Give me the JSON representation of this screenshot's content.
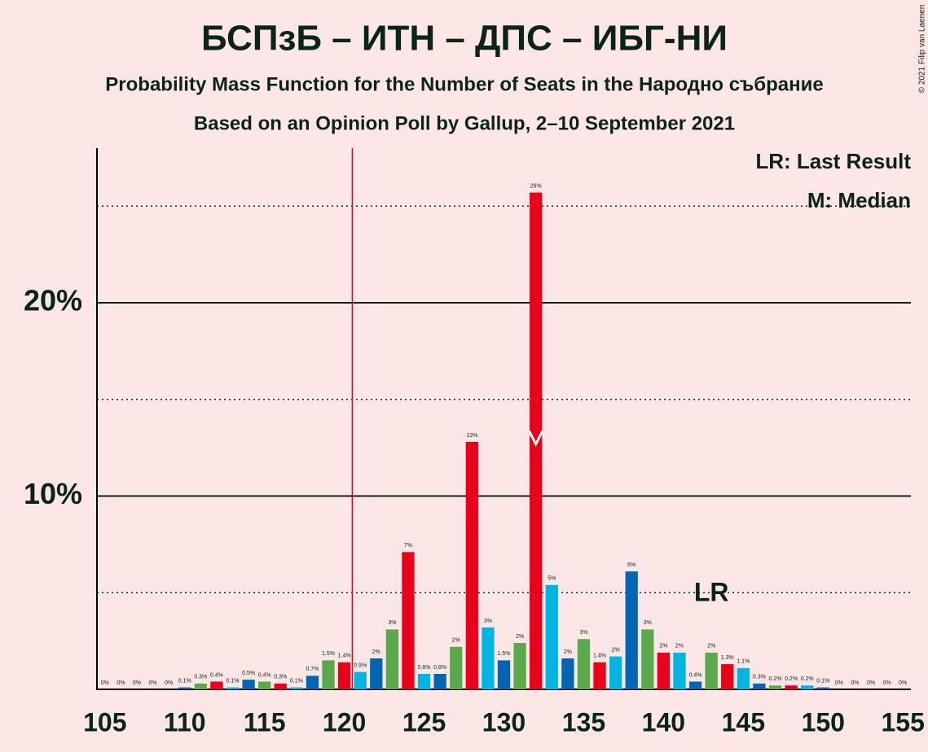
{
  "chart_data": {
    "type": "bar",
    "title": "БСПзБ – ИТН – ДПС – ИБГ-НИ",
    "subtitle": "Probability Mass Function for the Number of Seats in the Народно събрание",
    "subtitle2": "Based on an Opinion Poll by Gallup, 2–10 September 2021",
    "copyright": "© 2021 Filip van Laenen",
    "legend": [
      "LR: Last Result",
      "M: Median"
    ],
    "last_result_label": "LR",
    "last_result": 143,
    "median": 132,
    "threshold": 120.5,
    "colors": [
      "#00b5e2",
      "#0066b3",
      "#5aa94a",
      "#e8001c"
    ],
    "threshold_color": "#e8001c",
    "x": [
      105,
      106,
      107,
      108,
      109,
      110,
      111,
      112,
      113,
      114,
      115,
      116,
      117,
      118,
      119,
      120,
      121,
      122,
      123,
      124,
      125,
      126,
      127,
      128,
      129,
      130,
      131,
      132,
      133,
      134,
      135,
      136,
      137,
      138,
      139,
      140,
      141,
      142,
      143,
      144,
      145,
      146,
      147,
      148,
      149,
      150,
      151,
      152,
      153,
      154,
      155
    ],
    "values": [
      0,
      0,
      0,
      0,
      0,
      0.1,
      0.3,
      0.4,
      0.1,
      0.5,
      0.4,
      0.3,
      0.1,
      0.7,
      1.5,
      1.4,
      0.9,
      1.6,
      3.1,
      7.1,
      0.8,
      0.8,
      2.2,
      12.8,
      3.2,
      1.5,
      2.4,
      25.7,
      5.4,
      1.6,
      2.6,
      1.4,
      1.7,
      6.1,
      3.1,
      1.9,
      1.9,
      0.4,
      1.9,
      1.3,
      1.1,
      0.3,
      0.2,
      0.2,
      0.2,
      0.1,
      0,
      0,
      0,
      0,
      0
    ],
    "value_labels": [
      "0%",
      "0%",
      "0%",
      "0%",
      "0%",
      "0.1%",
      "0.3%",
      "0.4%",
      "0.1%",
      "0.5%",
      "0.4%",
      "0.3%",
      "0.1%",
      "0.7%",
      "1.5%",
      "1.4%",
      "0.9%",
      "2%",
      "3%",
      "7%",
      "0.8%",
      "0.8%",
      "2%",
      "13%",
      "3%",
      "1.5%",
      "2%",
      "26%",
      "5%",
      "2%",
      "3%",
      "1.4%",
      "2%",
      "6%",
      "3%",
      "2%",
      "2%",
      "0.4%",
      "2%",
      "1.3%",
      "1.1%",
      "0.3%",
      "0.2%",
      "0.2%",
      "0.2%",
      "0.1%",
      "0%",
      "0%",
      "0%",
      "0%",
      "0%"
    ],
    "xlim": [
      104.5,
      155.5
    ],
    "xticks": [
      105,
      110,
      115,
      120,
      125,
      130,
      135,
      140,
      145,
      150,
      155
    ],
    "ylim": [
      0,
      28
    ],
    "yticks": [
      {
        "value": 10,
        "label": "10%"
      },
      {
        "value": 20,
        "label": "20%"
      }
    ],
    "minor_yticks": [
      5,
      15,
      25
    ],
    "grid": true
  }
}
